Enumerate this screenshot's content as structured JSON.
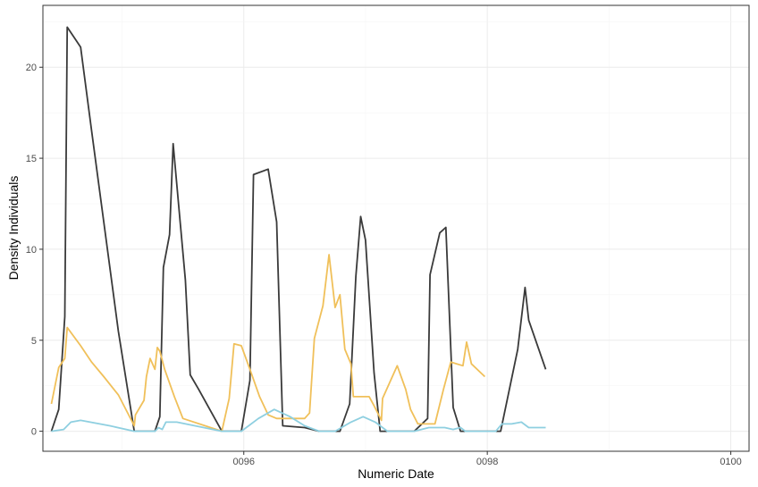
{
  "chart_data": {
    "type": "line",
    "title": "",
    "xlabel": "Numeric Date",
    "ylabel": "Density Individuals",
    "xlim": [
      0.09435,
      0.10015
    ],
    "ylim": [
      -1.1,
      23.4
    ],
    "x_ticks": [
      0.096,
      0.098,
      0.1
    ],
    "x_tick_labels": [
      "0096",
      "0098",
      "0100"
    ],
    "y_ticks": [
      0,
      5,
      10,
      15,
      20
    ],
    "y_tick_labels": [
      "0",
      "5",
      "10",
      "15",
      "20"
    ],
    "grid": true,
    "legend": "none",
    "series": [
      {
        "color": "#3a3a3a",
        "points": [
          [
            0.09442,
            0.0
          ],
          [
            0.09448,
            1.2
          ],
          [
            0.09453,
            6.3
          ],
          [
            0.09455,
            22.2
          ],
          [
            0.0946,
            21.7
          ],
          [
            0.09466,
            21.1
          ],
          [
            0.09475,
            16.5
          ],
          [
            0.09485,
            11.5
          ],
          [
            0.09497,
            5.5
          ],
          [
            0.0951,
            0.0
          ],
          [
            0.0952,
            0.0
          ],
          [
            0.09527,
            0.0
          ],
          [
            0.09531,
            0.8
          ],
          [
            0.09534,
            9.0
          ],
          [
            0.09539,
            10.8
          ],
          [
            0.09542,
            15.8
          ],
          [
            0.09552,
            8.3
          ],
          [
            0.09556,
            3.1
          ],
          [
            0.09563,
            2.3
          ],
          [
            0.09582,
            0.0
          ],
          [
            0.09592,
            0.0
          ],
          [
            0.09598,
            0.0
          ],
          [
            0.09605,
            2.8
          ],
          [
            0.09608,
            14.1
          ],
          [
            0.0962,
            14.4
          ],
          [
            0.09627,
            11.5
          ],
          [
            0.09632,
            0.3
          ],
          [
            0.0965,
            0.2
          ],
          [
            0.09662,
            0.0
          ],
          [
            0.09675,
            0.0
          ],
          [
            0.09679,
            0.0
          ],
          [
            0.09687,
            1.5
          ],
          [
            0.09692,
            8.5
          ],
          [
            0.09696,
            11.8
          ],
          [
            0.097,
            10.5
          ],
          [
            0.09707,
            3.2
          ],
          [
            0.09712,
            0.0
          ],
          [
            0.09725,
            0.0
          ],
          [
            0.0974,
            0.0
          ],
          [
            0.09751,
            0.7
          ],
          [
            0.09753,
            8.6
          ],
          [
            0.09761,
            10.9
          ],
          [
            0.09766,
            11.2
          ],
          [
            0.09772,
            1.3
          ],
          [
            0.09778,
            0.0
          ],
          [
            0.09795,
            0.0
          ],
          [
            0.09811,
            0.0
          ],
          [
            0.09825,
            4.5
          ],
          [
            0.09831,
            7.9
          ],
          [
            0.09834,
            6.1
          ],
          [
            0.09848,
            3.4
          ]
        ]
      },
      {
        "color": "#f0c05a",
        "points": [
          [
            0.09442,
            1.5
          ],
          [
            0.09448,
            3.5
          ],
          [
            0.09453,
            4.0
          ],
          [
            0.09455,
            5.7
          ],
          [
            0.09466,
            4.7
          ],
          [
            0.09475,
            3.8
          ],
          [
            0.09485,
            3.0
          ],
          [
            0.09497,
            2.0
          ],
          [
            0.0951,
            0.3
          ],
          [
            0.09511,
            0.9
          ],
          [
            0.09518,
            1.7
          ],
          [
            0.0952,
            3.0
          ],
          [
            0.09523,
            4.0
          ],
          [
            0.09527,
            3.4
          ],
          [
            0.09529,
            4.6
          ],
          [
            0.09531,
            4.4
          ],
          [
            0.09535,
            3.4
          ],
          [
            0.09543,
            1.9
          ],
          [
            0.0955,
            0.7
          ],
          [
            0.09582,
            0.0
          ],
          [
            0.09588,
            1.8
          ],
          [
            0.09592,
            4.8
          ],
          [
            0.09598,
            4.7
          ],
          [
            0.09605,
            3.4
          ],
          [
            0.09613,
            1.9
          ],
          [
            0.0962,
            0.9
          ],
          [
            0.09627,
            0.7
          ],
          [
            0.0965,
            0.7
          ],
          [
            0.09654,
            1.0
          ],
          [
            0.09658,
            5.1
          ],
          [
            0.09665,
            6.9
          ],
          [
            0.0967,
            9.7
          ],
          [
            0.09675,
            6.8
          ],
          [
            0.09679,
            7.5
          ],
          [
            0.09683,
            4.5
          ],
          [
            0.09688,
            3.7
          ],
          [
            0.0969,
            1.9
          ],
          [
            0.09703,
            1.9
          ],
          [
            0.09707,
            1.4
          ],
          [
            0.09713,
            0.6
          ],
          [
            0.09714,
            1.8
          ],
          [
            0.09726,
            3.6
          ],
          [
            0.09733,
            2.3
          ],
          [
            0.09737,
            1.2
          ],
          [
            0.09743,
            0.4
          ],
          [
            0.09757,
            0.4
          ],
          [
            0.09764,
            2.3
          ],
          [
            0.0977,
            3.8
          ],
          [
            0.0978,
            3.6
          ],
          [
            0.09783,
            4.9
          ],
          [
            0.09787,
            3.7
          ],
          [
            0.09798,
            3.0
          ]
        ]
      },
      {
        "color": "#8ecfe0",
        "points": [
          [
            0.09442,
            0.0
          ],
          [
            0.09452,
            0.1
          ],
          [
            0.09458,
            0.5
          ],
          [
            0.09466,
            0.6
          ],
          [
            0.0949,
            0.3
          ],
          [
            0.0951,
            0.0
          ],
          [
            0.09527,
            0.0
          ],
          [
            0.0953,
            0.2
          ],
          [
            0.09533,
            0.1
          ],
          [
            0.09536,
            0.5
          ],
          [
            0.09545,
            0.5
          ],
          [
            0.09582,
            0.0
          ],
          [
            0.09598,
            0.0
          ],
          [
            0.09612,
            0.7
          ],
          [
            0.09625,
            1.2
          ],
          [
            0.09638,
            0.8
          ],
          [
            0.0965,
            0.3
          ],
          [
            0.09662,
            0.0
          ],
          [
            0.09675,
            0.0
          ],
          [
            0.09688,
            0.5
          ],
          [
            0.09698,
            0.8
          ],
          [
            0.09708,
            0.5
          ],
          [
            0.09718,
            0.0
          ],
          [
            0.0974,
            0.0
          ],
          [
            0.09752,
            0.2
          ],
          [
            0.09765,
            0.2
          ],
          [
            0.09772,
            0.1
          ],
          [
            0.09778,
            0.2
          ],
          [
            0.09782,
            0.0
          ],
          [
            0.09807,
            0.0
          ],
          [
            0.09812,
            0.4
          ],
          [
            0.0982,
            0.4
          ],
          [
            0.09828,
            0.5
          ],
          [
            0.09834,
            0.2
          ],
          [
            0.09848,
            0.2
          ]
        ]
      }
    ]
  }
}
